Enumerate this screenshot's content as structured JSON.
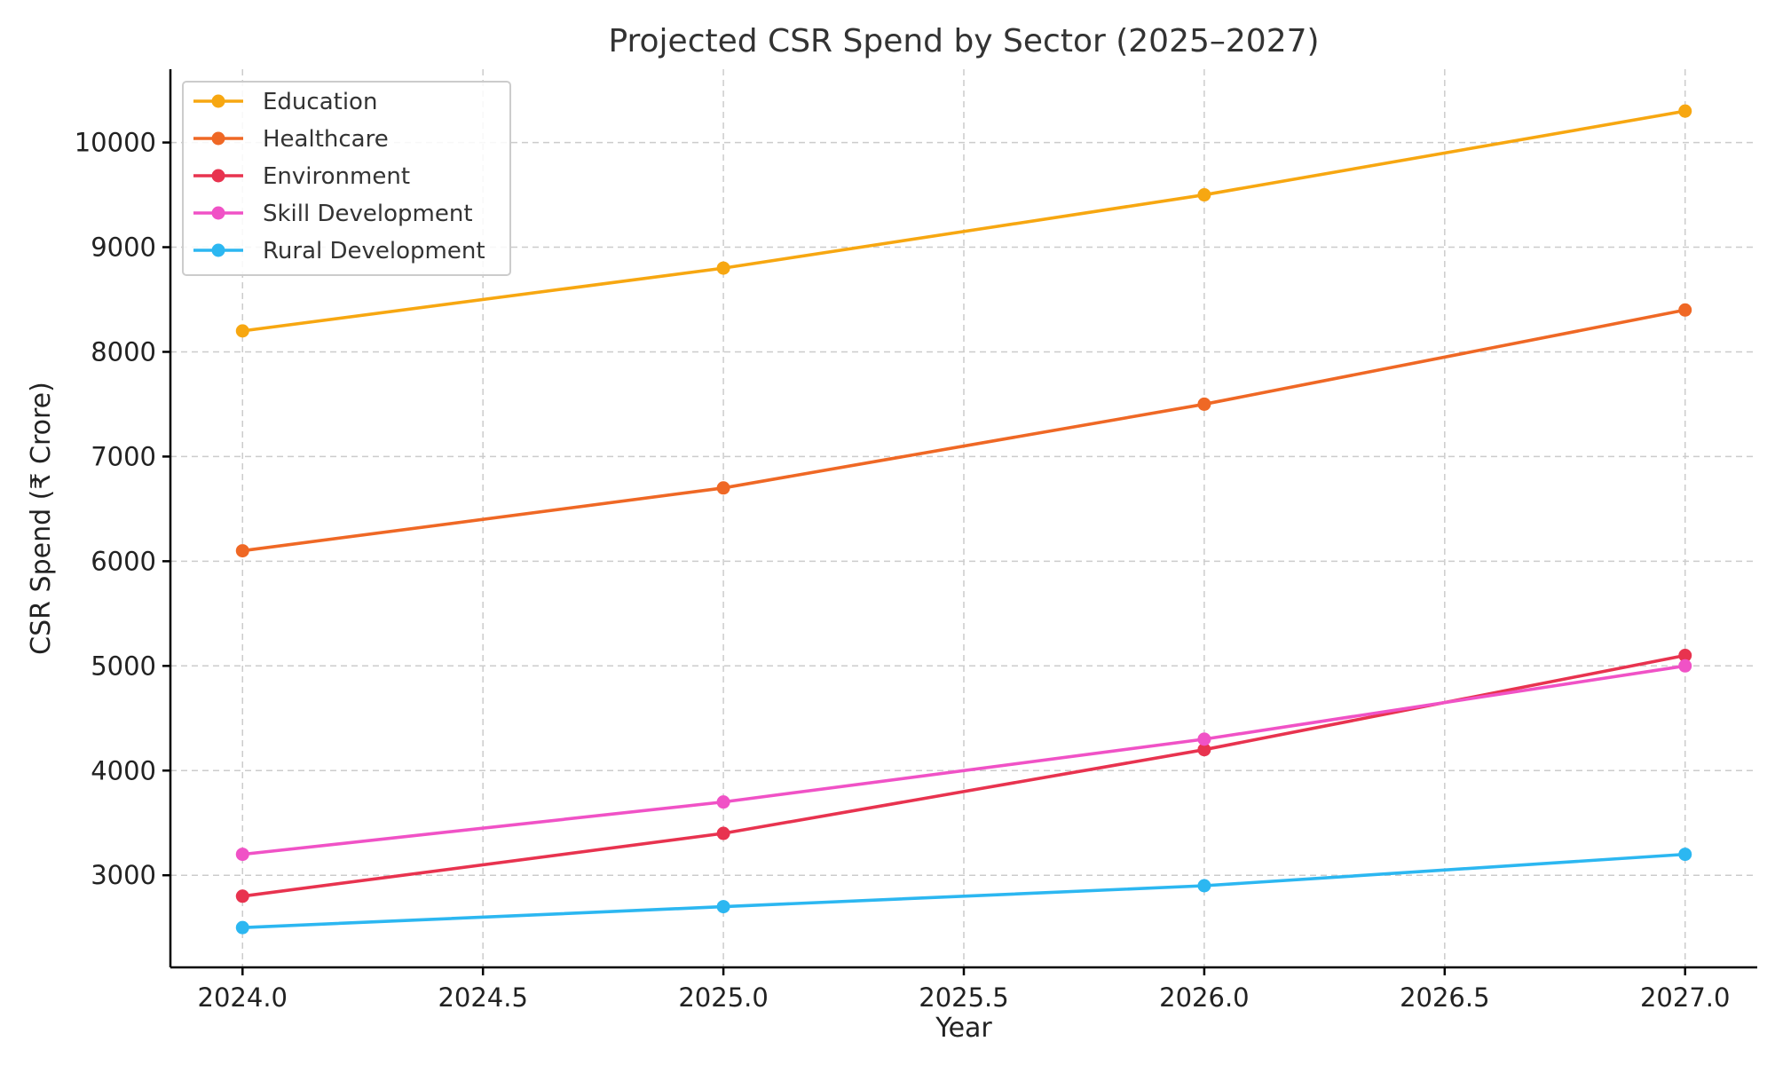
{
  "chart_data": {
    "type": "line",
    "title": "Projected CSR Spend by Sector (2025–2027)",
    "xlabel": "Year",
    "ylabel": "CSR Spend (₹ Crore)",
    "x": [
      2024,
      2025,
      2026,
      2027
    ],
    "xlim": [
      2023.85,
      2027.15
    ],
    "ylim": [
      2120,
      10700
    ],
    "xticks": [
      2024.0,
      2024.5,
      2025.0,
      2025.5,
      2026.0,
      2026.5,
      2027.0
    ],
    "xtick_labels": [
      "2024.0",
      "2024.5",
      "2025.0",
      "2025.5",
      "2026.0",
      "2026.5",
      "2027.0"
    ],
    "yticks": [
      3000,
      4000,
      5000,
      6000,
      7000,
      8000,
      9000,
      10000
    ],
    "ytick_labels": [
      "3000",
      "4000",
      "5000",
      "6000",
      "7000",
      "8000",
      "9000",
      "10000"
    ],
    "grid": true,
    "legend_position": "top-left",
    "series": [
      {
        "name": "Education",
        "color": "#f7a711",
        "values": [
          8200,
          8800,
          9500,
          10300
        ]
      },
      {
        "name": "Healthcare",
        "color": "#ef6825",
        "values": [
          6100,
          6700,
          7500,
          8400
        ]
      },
      {
        "name": "Environment",
        "color": "#e8334f",
        "values": [
          2800,
          3400,
          4200,
          5100
        ]
      },
      {
        "name": "Skill Development",
        "color": "#f052c6",
        "values": [
          3200,
          3700,
          4300,
          5000
        ]
      },
      {
        "name": "Rural Development",
        "color": "#2cb7f1",
        "values": [
          2500,
          2700,
          2900,
          3200
        ]
      }
    ]
  }
}
